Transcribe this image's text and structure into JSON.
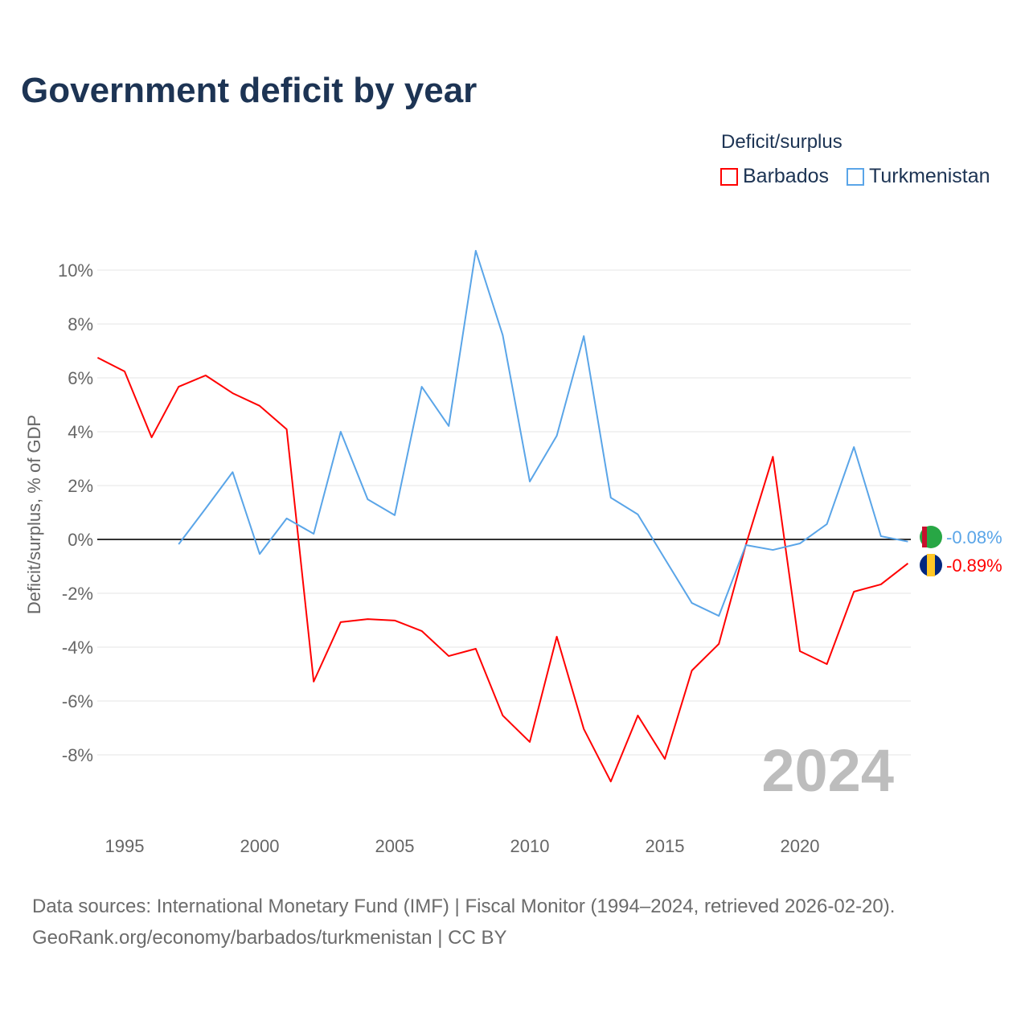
{
  "title": "Government deficit by year",
  "legend": {
    "title": "Deficit/surplus",
    "items": [
      "Barbados",
      "Turkmenistan"
    ]
  },
  "footer": {
    "line1": "Data sources: International Monetary Fund (IMF) | Fiscal Monitor (1994–2024, retrieved 2026-02-20).",
    "line2": "GeoRank.org/economy/barbados/turkmenistan | CC BY"
  },
  "year_label": "2024",
  "colors": {
    "Barbados": "#ff0000",
    "Turkmenistan": "#5aa5e8"
  },
  "chart_data": {
    "type": "line",
    "title": "Government deficit by year",
    "xlabel": "",
    "ylabel": "Deficit/surplus, % of GDP",
    "xlim": [
      1994,
      2024
    ],
    "ylim": [
      -10,
      11
    ],
    "xticks": [
      1995,
      2000,
      2005,
      2010,
      2015,
      2020
    ],
    "yticks": [
      -8,
      -6,
      -4,
      -2,
      0,
      2,
      4,
      6,
      8,
      10
    ],
    "ytick_labels": [
      "-8%",
      "-6%",
      "-4%",
      "-2%",
      "0%",
      "2%",
      "4%",
      "6%",
      "8%",
      "10%"
    ],
    "series": [
      {
        "name": "Barbados",
        "end_label": "-0.89%",
        "x": [
          1994,
          1995,
          1996,
          1997,
          1998,
          1999,
          2000,
          2001,
          2002,
          2003,
          2004,
          2005,
          2006,
          2007,
          2008,
          2009,
          2010,
          2011,
          2012,
          2013,
          2014,
          2015,
          2016,
          2017,
          2018,
          2019,
          2020,
          2021,
          2022,
          2023,
          2024
        ],
        "values": [
          6.75,
          6.24,
          3.79,
          5.67,
          6.09,
          5.43,
          4.96,
          4.09,
          -5.28,
          -3.07,
          -2.96,
          -3.01,
          -3.4,
          -4.33,
          -4.06,
          -6.54,
          -7.52,
          -3.61,
          -7.04,
          -8.99,
          -6.54,
          -8.15,
          -4.87,
          -3.88,
          -0.2,
          3.07,
          -4.15,
          -4.63,
          -1.94,
          -1.67,
          -0.89
        ]
      },
      {
        "name": "Turkmenistan",
        "end_label": "-0.08%",
        "x": [
          1997,
          1998,
          1999,
          2000,
          2001,
          2002,
          2003,
          2004,
          2005,
          2006,
          2007,
          2008,
          2009,
          2010,
          2011,
          2012,
          2013,
          2014,
          2015,
          2016,
          2017,
          2018,
          2019,
          2020,
          2021,
          2022,
          2023,
          2024
        ],
        "values": [
          -0.18,
          1.15,
          2.5,
          -0.54,
          0.78,
          0.21,
          4.0,
          1.49,
          0.9,
          5.67,
          4.21,
          10.72,
          7.58,
          2.15,
          3.85,
          7.55,
          1.55,
          0.93,
          -0.72,
          -2.36,
          -2.84,
          -0.21,
          -0.39,
          -0.15,
          0.57,
          3.43,
          0.12,
          -0.08
        ]
      }
    ]
  }
}
